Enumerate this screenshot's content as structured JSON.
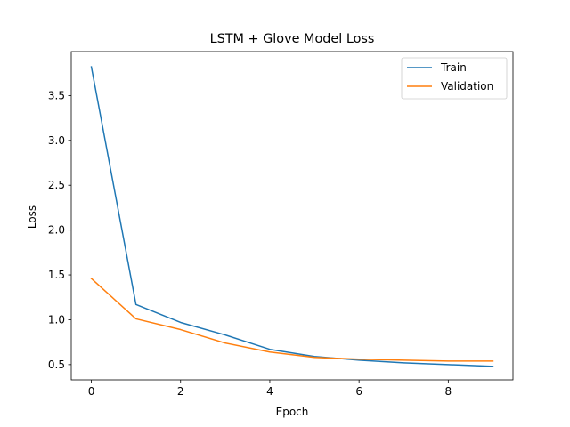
{
  "chart_data": {
    "type": "line",
    "title": "LSTM + Glove Model Loss",
    "xlabel": "Epoch",
    "ylabel": "Loss",
    "x": [
      0,
      1,
      2,
      3,
      4,
      5,
      6,
      7,
      8,
      9
    ],
    "xlim": [
      -0.45,
      9.45
    ],
    "ylim": [
      0.33,
      3.99
    ],
    "xticks": [
      0,
      2,
      4,
      6,
      8
    ],
    "xtick_labels": [
      "0",
      "2",
      "4",
      "6",
      "8"
    ],
    "yticks": [
      0.5,
      1.0,
      1.5,
      2.0,
      2.5,
      3.0,
      3.5
    ],
    "ytick_labels": [
      "0.5",
      "1.0",
      "1.5",
      "2.0",
      "2.5",
      "3.0",
      "3.5"
    ],
    "grid": false,
    "legend_position": "top-right",
    "series": [
      {
        "name": "Train",
        "color": "#1f77b4",
        "values": [
          3.82,
          1.17,
          0.97,
          0.83,
          0.67,
          0.59,
          0.55,
          0.52,
          0.5,
          0.48
        ]
      },
      {
        "name": "Validation",
        "color": "#ff7f0e",
        "values": [
          1.46,
          1.01,
          0.89,
          0.74,
          0.64,
          0.58,
          0.56,
          0.55,
          0.54,
          0.54
        ]
      }
    ]
  }
}
